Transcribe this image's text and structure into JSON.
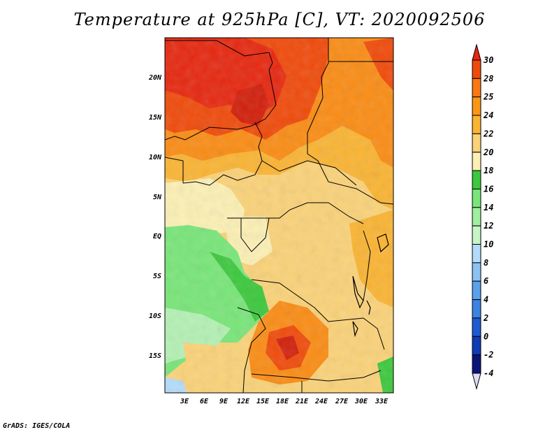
{
  "title": "Temperature at 925hPa [C], VT: 2020092506",
  "credit": "GrADS: IGES/COLA",
  "map": {
    "lat_labels": [
      "20N",
      "15N",
      "10N",
      "5N",
      "EQ",
      "5S",
      "10S",
      "15S"
    ],
    "lon_labels": [
      "3E",
      "6E",
      "9E",
      "12E",
      "15E",
      "18E",
      "21E",
      "24E",
      "27E",
      "30E",
      "33E"
    ],
    "colors": {
      "red": "#e6270f",
      "dark_red": "#d21e0a",
      "orange_red": "#f04a0a",
      "orange": "#fa8c14",
      "light_orange": "#fab432",
      "tan": "#fad278",
      "pale_yellow": "#fcf0b4",
      "green": "#3cc83c",
      "light_green": "#78e678",
      "pale_green": "#b4f0b4",
      "pale_blue": "#b4dcfa"
    }
  },
  "colorbar": {
    "labels": [
      "30",
      "28",
      "25",
      "24",
      "22",
      "20",
      "18",
      "16",
      "14",
      "12",
      "10",
      "8",
      "6",
      "4",
      "2",
      "0",
      "-2",
      "-4"
    ],
    "colors": [
      "#e6270f",
      "#f04a0a",
      "#fa7814",
      "#fa9614",
      "#fab432",
      "#fad278",
      "#fcf0b4",
      "#3cc83c",
      "#78e678",
      "#a0eea0",
      "#c8f5c8",
      "#b4dcfa",
      "#8cc3f5",
      "#5aa0eb",
      "#3c82e1",
      "#1e5ad2",
      "#0f3cb4",
      "#0a1478",
      "#dcdcf5"
    ]
  }
}
